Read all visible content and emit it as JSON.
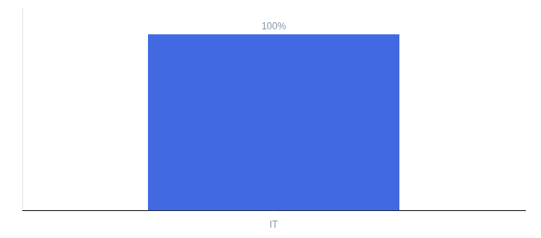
{
  "chart_data": {
    "type": "bar",
    "categories": [
      "IT"
    ],
    "values": [
      100
    ],
    "value_labels": [
      "100%"
    ],
    "color": "#4169e1",
    "ylim": [
      0,
      115
    ],
    "grid": false,
    "data_labels": true,
    "tick_labels": "x"
  }
}
